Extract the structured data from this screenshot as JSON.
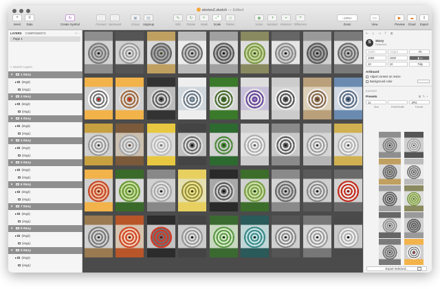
{
  "window": {
    "title": "stories2.sketch",
    "edited": "— Edited"
  },
  "toolbar": {
    "insert": "Insert",
    "data": "Data",
    "create_symbol": "Create Symbol",
    "forward": "Forward",
    "backward": "Backward",
    "group": "Group",
    "ungroup": "Ungroup",
    "edit": "Edit",
    "rotate": "Rotate",
    "mask": "Mask",
    "scale": "Scale",
    "flatten": "Flatten",
    "union": "Union",
    "subtract": "Subtract",
    "intersect": "Intersect",
    "difference": "Difference",
    "zoom": "Zoom",
    "zoom_value": "13%",
    "view": "View",
    "preview": "Preview",
    "cloud": "Cloud",
    "export": "Export"
  },
  "sidebar": {
    "tab_layers": "LAYERS",
    "tab_components": "COMPONENTS",
    "page": "Page 1",
    "search_placeholder": "Search Layers",
    "stories": [
      {
        "name": "1 Story",
        "children": [
          "(img2)",
          "(img1)"
        ]
      },
      {
        "name": "2 Story",
        "children": [
          "(img2)",
          "(img1)"
        ]
      },
      {
        "name": "3 Story",
        "children": [
          "(img2)",
          "(img1)"
        ]
      },
      {
        "name": "4 Story",
        "children": [
          "(img2)",
          "(img1)"
        ]
      },
      {
        "name": "5 Story",
        "children": [
          "(img2)",
          "(img1)"
        ]
      },
      {
        "name": "6 Story",
        "children": [
          "(img2)",
          "(img1)"
        ]
      },
      {
        "name": "7 Story",
        "children": [
          "(img2)",
          "(img1)"
        ]
      },
      {
        "name": "8 Story",
        "children": [
          "(img2)",
          "(img1)"
        ]
      },
      {
        "name": "9 Story",
        "children": [
          "(img2)",
          "(img1)"
        ]
      }
    ]
  },
  "canvas": {
    "artboards": [
      {
        "top": "#8e8e8e",
        "mid": "#d3d3d3",
        "ring": "#7a7a7a",
        "ring2": "#bdbdbd",
        "center": "#222"
      },
      {
        "top": "#555",
        "mid": "#cfcfcf",
        "ring": "#9b9b9b",
        "ring2": "#e0e0e0",
        "center": "#3a3a3a"
      },
      {
        "top": "#c0a060",
        "mid": "#d9d9d9",
        "ring": "#666",
        "ring2": "#aaa",
        "center": "#4a4a30"
      },
      {
        "top": "#bbb",
        "mid": "#ececec",
        "ring": "#707070",
        "ring2": "#c9c9c9",
        "center": "#2c2c2c"
      },
      {
        "top": "#a0a0a0",
        "mid": "#dcdcdc",
        "ring": "#585858",
        "ring2": "#b5b5b5",
        "center": "#1a1a1a"
      },
      {
        "top": "#8a8a60",
        "mid": "#ddd",
        "ring": "#7d9a48",
        "ring2": "#c8d8a0",
        "center": "#3a5020"
      },
      {
        "top": "#666",
        "mid": "#e5e5e5",
        "ring": "#8c8c8c",
        "ring2": "#cfcfcf",
        "center": "#202020"
      },
      {
        "top": "#9a9a9a",
        "mid": "#d0d0d0",
        "ring": "#5a5a5a",
        "ring2": "#a5a5a5",
        "center": "#2a2a2a"
      },
      {
        "top": "#7a7a7a",
        "mid": "#e0e0e0",
        "ring": "#6d6d6d",
        "ring2": "#bebebe",
        "center": "#333"
      },
      {
        "top": "#f2b34a",
        "mid": "#cfcfcf",
        "ring": "#ffffff",
        "ring2": "#777",
        "center": "#c01818"
      },
      {
        "top": "#f2b34a",
        "mid": "#d0d0d0",
        "ring": "#e2e2e2",
        "ring2": "#a06a40",
        "center": "#d02020"
      },
      {
        "top": "#333",
        "mid": "#bcbcbc",
        "ring": "#d9d9d9",
        "ring2": "#606060",
        "center": "#222"
      },
      {
        "top": "#eee",
        "mid": "#cfd6dc",
        "ring": "#f5f5f5",
        "ring2": "#6b7a88",
        "center": "#90a6b8"
      },
      {
        "top": "#3a7a2a",
        "mid": "#d5d5d5",
        "ring": "#e6e6e6",
        "ring2": "#4a6d30",
        "center": "#2a5a20"
      },
      {
        "top": "#ddd",
        "mid": "#c8c0d8",
        "ring": "#eaeaea",
        "ring2": "#6a4a9a",
        "center": "#9a7ad0"
      },
      {
        "top": "#ccc",
        "mid": "#d8d8d8",
        "ring": "#f0f0f0",
        "ring2": "#555",
        "center": "#303030"
      },
      {
        "top": "#b9a07a",
        "mid": "#dcd0b8",
        "ring": "#efefef",
        "ring2": "#8a6a4a",
        "center": "#5a4030"
      },
      {
        "top": "#6a8ab0",
        "mid": "#cfd8e3",
        "ring": "#f2f2f2",
        "ring2": "#5a6f8a",
        "center": "#2d3f58"
      },
      {
        "top": "#c7a040",
        "mid": "#d0d0d0",
        "ring": "#9a9a9a",
        "ring2": "#e6e6e6",
        "center": "#484848"
      },
      {
        "top": "#7a5a3a",
        "mid": "#cbbfb0",
        "ring": "#a5a5a5",
        "ring2": "#e0e0e0",
        "center": "#5a4636"
      },
      {
        "top": "#e8c840",
        "mid": "#d8d8d8",
        "ring": "#bababa",
        "ring2": "#ececec",
        "center": "#7a7a7a"
      },
      {
        "top": "#444",
        "mid": "#bfbfbf",
        "ring": "#dedede",
        "ring2": "#6f6f6f",
        "center": "#111"
      },
      {
        "top": "#2d6a30",
        "mid": "#d3d3d3",
        "ring": "#cfcfcf",
        "ring2": "#4b8a3a",
        "center": "#2a4a1a"
      },
      {
        "top": "#ccc",
        "mid": "#e0e0e0",
        "ring": "#adadad",
        "ring2": "#f1f1f1",
        "center": "#626262"
      },
      {
        "top": "#8a8a8a",
        "mid": "#c8c8c8",
        "ring": "#e8e8e8",
        "ring2": "#5e5e5e",
        "center": "#202020"
      },
      {
        "top": "#b5b5b5",
        "mid": "#d5d5d5",
        "ring": "#9d9d9d",
        "ring2": "#ebebeb",
        "center": "#3f3f3f"
      },
      {
        "top": "#d0b050",
        "mid": "#dadada",
        "ring": "#b4b4b4",
        "ring2": "#f0f0f0",
        "center": "#545454"
      },
      {
        "top": "#f2b34a",
        "mid": "#cfcfcf",
        "ring": "#c44a2a",
        "ring2": "#efc0a0",
        "center": "#7a2a10"
      },
      {
        "top": "#3a6a2a",
        "mid": "#d8d8d8",
        "ring": "#6a9a3a",
        "ring2": "#cce0a0",
        "center": "#1f3d12"
      },
      {
        "top": "#888",
        "mid": "#d0d0d0",
        "ring": "#a8a8a8",
        "ring2": "#e3e3e3",
        "center": "#2b2b2b"
      },
      {
        "top": "#e8d060",
        "mid": "#e6e0b0",
        "ring": "#9a8f40",
        "ring2": "#f0e890",
        "center": "#4a4010"
      },
      {
        "top": "#2a2a2a",
        "mid": "#a8a8a8",
        "ring": "#d0d0d0",
        "ring2": "#5b5b5b",
        "center": "#111"
      },
      {
        "top": "#3d6d2a",
        "mid": "#d0d0d0",
        "ring": "#7aa048",
        "ring2": "#cfe0a8",
        "center": "#1e3a10"
      },
      {
        "top": "#8a8a8a",
        "mid": "#d4d4d4",
        "ring": "#6b6b6b",
        "ring2": "#c7c7c7",
        "center": "#242424"
      },
      {
        "top": "#5a5a5a",
        "mid": "#cfcfcf",
        "ring": "#8a8a8a",
        "ring2": "#dedede",
        "center": "#222"
      },
      {
        "top": "#6a6a6a",
        "mid": "#d1d1d1",
        "ring": "#c43020",
        "ring2": "#eaeaea",
        "center": "#801810"
      },
      {
        "top": "#9a7a50",
        "mid": "#cfcfcf",
        "ring": "#7a7a7a",
        "ring2": "#d4d4d4",
        "center": "#3a3a3a"
      },
      {
        "top": "#b8562a",
        "mid": "#d6c4b0",
        "ring": "#d04828",
        "ring2": "#f0d0b8",
        "center": "#5a200e"
      },
      {
        "top": "#2c2c2c",
        "mid": "#c3c3c3",
        "ring": "#d43a28",
        "ring2": "#707070",
        "center": "#6a140c"
      },
      {
        "top": "#444",
        "mid": "#cbcbcb",
        "ring": "#979797",
        "ring2": "#e1e1e1",
        "center": "#1d1d1d"
      },
      {
        "top": "#3a6a30",
        "mid": "#c8d8c0",
        "ring": "#5e9a4a",
        "ring2": "#d8ecc8",
        "center": "#1a3a14"
      },
      {
        "top": "#2a5a5a",
        "mid": "#c0d6d6",
        "ring": "#3e8a8a",
        "ring2": "#c8e6e6",
        "center": "#0e3030"
      },
      {
        "top": "#555",
        "mid": "#cfcfcf",
        "ring": "#888",
        "ring2": "#e6e6e6",
        "center": "#2a2a2a"
      },
      {
        "top": "#777",
        "mid": "#d5d5d5",
        "ring": "#9a9a9a",
        "ring2": "#ededed",
        "center": "#353535"
      },
      {
        "top": "#4a4a4a",
        "mid": "#c9c9c9",
        "ring": "#b0b0b0",
        "ring2": "#f0f0f0",
        "center": "#1e1e1e"
      }
    ]
  },
  "inspector": {
    "symbol_name": "Story",
    "symbol_sub": "Detached",
    "x": "Width",
    "y": "Height",
    "fit": "Fit",
    "width": "1080",
    "height": "1920",
    "w_lbl": "W",
    "h_lbl": "H",
    "tidy": "Tidy",
    "x_val": "10",
    "y_val": "10",
    "artboard": "Artboard",
    "adjust": "Adjust content on resize",
    "background": "Background color",
    "export": "EXPORT",
    "presets": "Presets",
    "scale": "1x",
    "format": "JPG",
    "size_lbl": "Size",
    "prefix_lbl": "Prefix/Suffix",
    "format_lbl": "Format",
    "export_selected": "Export Selected..."
  }
}
